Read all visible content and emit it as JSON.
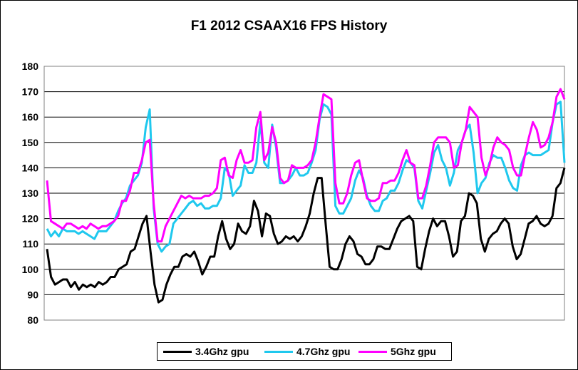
{
  "chart_data": {
    "type": "line",
    "title": "F1 2012 CSAAX16 FPS History",
    "xlabel": "",
    "ylabel": "",
    "ylim": [
      80,
      180
    ],
    "yticks": [
      80,
      90,
      100,
      110,
      120,
      130,
      140,
      150,
      160,
      170,
      180
    ],
    "grid": true,
    "legend_position": "bottom",
    "series": [
      {
        "name": "3.4Ghz gpu",
        "color": "#000000",
        "values": [
          108,
          97,
          94,
          95,
          96,
          96,
          93,
          95,
          92,
          94,
          93,
          94,
          93,
          95,
          94,
          95,
          97,
          97,
          100,
          101,
          102,
          107,
          108,
          113,
          118,
          121,
          107,
          94,
          87,
          88,
          94,
          98,
          101,
          101,
          105,
          106,
          105,
          107,
          103,
          98,
          101,
          105,
          105,
          113,
          119,
          112,
          108,
          110,
          118,
          115,
          114,
          117,
          127,
          123,
          113,
          122,
          121,
          114,
          110,
          111,
          113,
          112,
          113,
          111,
          113,
          117,
          122,
          130,
          136,
          136,
          118,
          101,
          100,
          100,
          104,
          110,
          113,
          111,
          106,
          105,
          102,
          102,
          104,
          109,
          109,
          108,
          108,
          112,
          116,
          119,
          120,
          121,
          119,
          101,
          100,
          108,
          115,
          120,
          117,
          119,
          119,
          113,
          105,
          107,
          119,
          121,
          130,
          129,
          126,
          112,
          107,
          112,
          114,
          115,
          118,
          120,
          118,
          109,
          104,
          106,
          112,
          118,
          119,
          121,
          118,
          117,
          118,
          121,
          132,
          134,
          140
        ]
      },
      {
        "name": "4.7Ghz gpu",
        "color": "#1fc8ee",
        "values": [
          116,
          113,
          115,
          113,
          116,
          115,
          115,
          115,
          114,
          115,
          114,
          113,
          112,
          115,
          115,
          115,
          117,
          119,
          123,
          126,
          128,
          133,
          135,
          137,
          142,
          156,
          163,
          124,
          110,
          107,
          109,
          110,
          118,
          120,
          122,
          124,
          126,
          127,
          125,
          126,
          124,
          124,
          125,
          125,
          128,
          140,
          138,
          129,
          131,
          133,
          141,
          138,
          138,
          142,
          158,
          142,
          140,
          157,
          148,
          134,
          134,
          135,
          137,
          140,
          137,
          137,
          138,
          142,
          147,
          159,
          165,
          164,
          161,
          125,
          122,
          122,
          125,
          128,
          135,
          139,
          136,
          129,
          125,
          123,
          123,
          127,
          128,
          131,
          131,
          134,
          139,
          143,
          142,
          140,
          127,
          124,
          131,
          138,
          146,
          149,
          143,
          140,
          133,
          138,
          147,
          150,
          155,
          157,
          146,
          130,
          134,
          136,
          142,
          145,
          144,
          144,
          140,
          135,
          132,
          131,
          141,
          145,
          146,
          145,
          145,
          145,
          146,
          147,
          158,
          165,
          166,
          142
        ]
      },
      {
        "name": "5Ghz gpu",
        "color": "#ff00ff",
        "values": [
          135,
          119,
          118,
          117,
          116,
          118,
          118,
          117,
          116,
          117,
          116,
          118,
          117,
          116,
          117,
          117,
          118,
          119,
          121,
          127,
          127,
          131,
          138,
          138,
          143,
          150,
          151,
          126,
          111,
          111,
          117,
          120,
          123,
          126,
          129,
          128,
          129,
          128,
          128,
          128,
          129,
          129,
          130,
          132,
          143,
          144,
          137,
          136,
          143,
          147,
          142,
          142,
          143,
          156,
          162,
          143,
          146,
          156,
          150,
          136,
          134,
          135,
          141,
          140,
          140,
          140,
          141,
          143,
          150,
          160,
          169,
          168,
          167,
          134,
          126,
          126,
          130,
          137,
          142,
          143,
          135,
          128,
          127,
          127,
          128,
          134,
          134,
          135,
          135,
          138,
          143,
          147,
          142,
          141,
          128,
          128,
          133,
          141,
          150,
          152,
          152,
          152,
          150,
          140,
          141,
          150,
          155,
          164,
          162,
          160,
          144,
          137,
          141,
          148,
          152,
          150,
          149,
          147,
          140,
          137,
          137,
          145,
          152,
          158,
          155,
          148,
          149,
          152,
          158,
          168,
          171,
          167
        ]
      }
    ]
  }
}
